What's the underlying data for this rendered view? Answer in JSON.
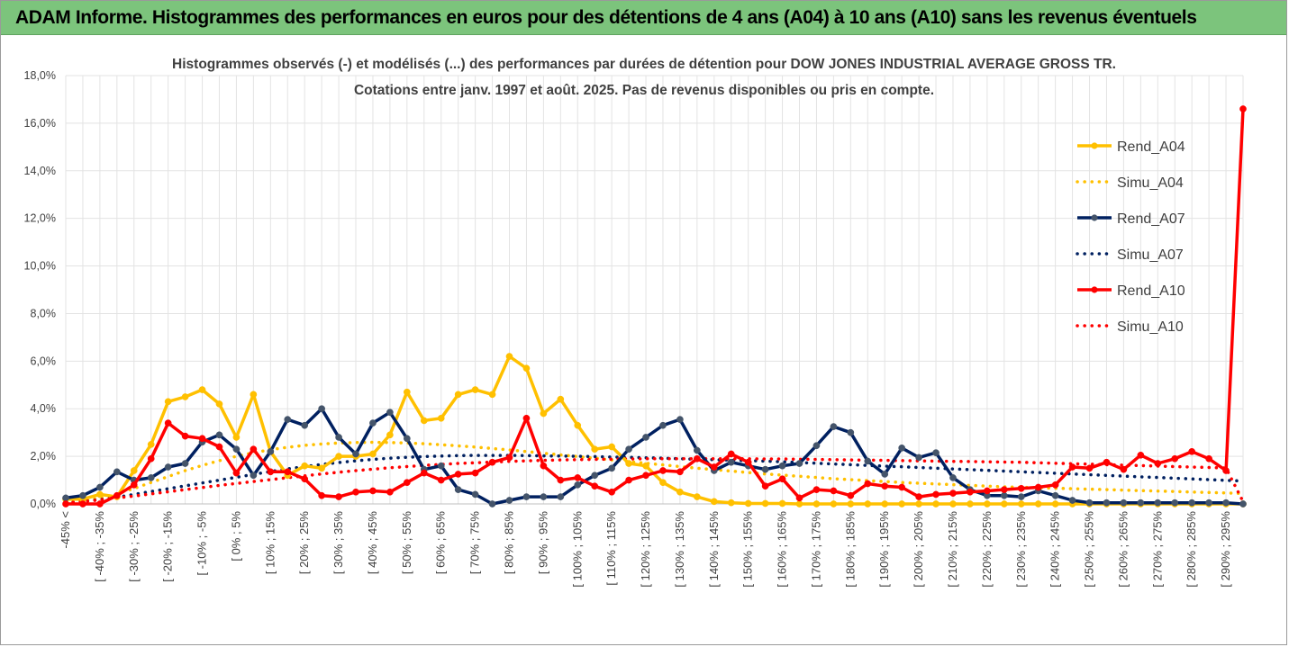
{
  "banner": {
    "title": "ADAM Informe. Histogrammes des performances en euros pour des détentions de 4 ans (A04) à 10 ans (A10) sans les revenus éventuels"
  },
  "chart_data": {
    "type": "line",
    "title_line1": "Histogrammes observés (-) et modélisés (...) des performances par durées de détention pour DOW JONES INDUSTRIAL AVERAGE GROSS TR.",
    "title_line2": "Cotations entre janv. 1997 et août. 2025. Pas de revenus disponibles ou pris en compte.",
    "ylim": [
      0,
      18
    ],
    "y_ticks": [
      "0,0%",
      "2,0%",
      "4,0%",
      "6,0%",
      "8,0%",
      "10,0%",
      "12,0%",
      "14,0%",
      "16,0%",
      "18,0%"
    ],
    "x_tick_labels": [
      "-45% <",
      "[ -40% ; -35%",
      "[ -30% ; -25%",
      "[ -20% ; -15%",
      "[ -10% ; -5%",
      "[ 0% ; 5%",
      "[ 10% ; 15%",
      "[ 20% ; 25%",
      "[ 30% ; 35%",
      "[ 40% ; 45%",
      "[ 50% ; 55%",
      "[ 60% ; 65%",
      "[ 70% ; 75%",
      "[ 80% ; 85%",
      "[ 90% ; 95%",
      "[ 100% ; 105%",
      "[ 110% ; 115%",
      "[ 120% ; 125%",
      "[ 130% ; 135%",
      "[ 140% ; 145%",
      "[ 150% ; 155%",
      "[ 160% ; 165%",
      "[ 170% ; 175%",
      "[ 180% ; 185%",
      "[ 190% ; 195%",
      "[ 200% ; 205%",
      "[ 210% ; 215%",
      "[ 220% ; 225%",
      "[ 230% ; 235%",
      "[ 240% ; 245%",
      "[ 250% ; 255%",
      "[ 260% ; 265%",
      "[ 270% ; 275%",
      "[ 280% ; 285%",
      "[ 290% ; 295%"
    ],
    "n_bins": 70,
    "legend_position": "right",
    "grid": true,
    "series": [
      {
        "name": "Rend_A04",
        "style": "solid",
        "color": "#FFC000",
        "values": [
          0.2,
          0.2,
          0.4,
          0.3,
          1.4,
          2.5,
          4.3,
          4.5,
          4.8,
          4.2,
          2.8,
          4.6,
          2.2,
          1.2,
          1.6,
          1.5,
          2.0,
          2.0,
          2.1,
          2.9,
          4.7,
          3.5,
          3.6,
          4.6,
          4.8,
          4.6,
          6.2,
          5.7,
          3.8,
          4.4,
          3.3,
          2.3,
          2.4,
          1.7,
          1.6,
          0.9,
          0.5,
          0.3,
          0.1,
          0.05,
          0.02,
          0.02,
          0.02,
          0.0,
          0.0,
          0.0,
          0.0,
          0.0,
          0.0,
          0.0,
          0.0,
          0.0,
          0.0,
          0.0,
          0.0,
          0.0,
          0.0,
          0.0,
          0.0,
          0.0,
          0.0,
          0.0,
          0.0,
          0.0,
          0.0,
          0.0,
          0.0,
          0.0,
          0.0,
          0.0
        ]
      },
      {
        "name": "Simu_A04",
        "style": "dotted",
        "color": "#FFC000",
        "values": [
          0.05,
          0.12,
          0.25,
          0.42,
          0.65,
          0.9,
          1.15,
          1.4,
          1.62,
          1.82,
          2.0,
          2.15,
          2.28,
          2.38,
          2.46,
          2.52,
          2.56,
          2.58,
          2.59,
          2.58,
          2.56,
          2.53,
          2.49,
          2.44,
          2.39,
          2.33,
          2.27,
          2.2,
          2.13,
          2.06,
          1.99,
          1.92,
          1.85,
          1.78,
          1.71,
          1.64,
          1.57,
          1.5,
          1.44,
          1.38,
          1.32,
          1.26,
          1.21,
          1.16,
          1.11,
          1.06,
          1.02,
          0.98,
          0.94,
          0.9,
          0.87,
          0.84,
          0.81,
          0.78,
          0.75,
          0.72,
          0.7,
          0.68,
          0.66,
          0.64,
          0.62,
          0.6,
          0.58,
          0.56,
          0.54,
          0.52,
          0.5,
          0.48,
          0.46,
          0.44
        ]
      },
      {
        "name": "Rend_A07",
        "style": "solid",
        "color": "#002060",
        "values": [
          0.25,
          0.35,
          0.7,
          1.35,
          1.0,
          1.1,
          1.55,
          1.7,
          2.6,
          2.9,
          2.3,
          1.2,
          2.2,
          3.55,
          3.3,
          4.0,
          2.8,
          2.1,
          3.4,
          3.85,
          2.75,
          1.45,
          1.6,
          0.6,
          0.4,
          0.0,
          0.15,
          0.3,
          0.3,
          0.3,
          0.8,
          1.2,
          1.5,
          2.3,
          2.8,
          3.3,
          3.55,
          2.25,
          1.4,
          1.75,
          1.6,
          1.45,
          1.6,
          1.7,
          2.45,
          3.25,
          3.0,
          1.8,
          1.25,
          2.35,
          1.95,
          2.15,
          1.1,
          0.6,
          0.35,
          0.35,
          0.3,
          0.55,
          0.35,
          0.15,
          0.05,
          0.05,
          0.05,
          0.05,
          0.05,
          0.05,
          0.05,
          0.05,
          0.05,
          0.0
        ]
      },
      {
        "name": "Simu_A07",
        "style": "dotted",
        "color": "#002060",
        "values": [
          0.05,
          0.1,
          0.18,
          0.28,
          0.4,
          0.52,
          0.64,
          0.76,
          0.88,
          1.0,
          1.12,
          1.24,
          1.36,
          1.47,
          1.57,
          1.66,
          1.74,
          1.81,
          1.87,
          1.92,
          1.96,
          1.99,
          2.01,
          2.03,
          2.04,
          2.04,
          2.04,
          2.03,
          2.02,
          2.01,
          2.0,
          1.99,
          1.97,
          1.96,
          1.94,
          1.92,
          1.9,
          1.88,
          1.86,
          1.84,
          1.82,
          1.8,
          1.77,
          1.74,
          1.71,
          1.68,
          1.65,
          1.62,
          1.59,
          1.56,
          1.53,
          1.5,
          1.47,
          1.44,
          1.41,
          1.38,
          1.35,
          1.32,
          1.29,
          1.26,
          1.23,
          1.2,
          1.17,
          1.14,
          1.11,
          1.08,
          1.05,
          1.02,
          0.99,
          0.96
        ]
      },
      {
        "name": "Rend_A10",
        "style": "solid",
        "color": "#FF0000",
        "values": [
          0.0,
          0.0,
          0.0,
          0.35,
          0.8,
          1.9,
          3.4,
          2.85,
          2.75,
          2.4,
          1.3,
          2.3,
          1.35,
          1.35,
          1.05,
          0.35,
          0.3,
          0.5,
          0.55,
          0.5,
          0.9,
          1.3,
          1.0,
          1.25,
          1.3,
          1.75,
          1.95,
          3.6,
          1.6,
          1.0,
          1.1,
          0.75,
          0.5,
          1.0,
          1.2,
          1.4,
          1.35,
          1.9,
          1.55,
          2.1,
          1.75,
          0.75,
          1.05,
          0.25,
          0.6,
          0.55,
          0.35,
          0.85,
          0.75,
          0.7,
          0.3,
          0.4,
          0.45,
          0.5,
          0.55,
          0.6,
          0.65,
          0.7,
          0.8,
          1.55,
          1.5,
          1.75,
          1.45,
          2.05,
          1.7,
          1.9,
          2.2,
          1.9,
          1.4,
          16.6
        ]
      },
      {
        "name": "Simu_A10",
        "style": "dotted",
        "color": "#FF0000",
        "values": [
          0.05,
          0.1,
          0.17,
          0.25,
          0.33,
          0.42,
          0.51,
          0.6,
          0.69,
          0.78,
          0.86,
          0.94,
          1.02,
          1.1,
          1.18,
          1.26,
          1.33,
          1.4,
          1.46,
          1.52,
          1.57,
          1.62,
          1.66,
          1.7,
          1.73,
          1.76,
          1.79,
          1.81,
          1.83,
          1.85,
          1.86,
          1.87,
          1.88,
          1.89,
          1.9,
          1.9,
          1.9,
          1.9,
          1.9,
          1.9,
          1.9,
          1.89,
          1.89,
          1.88,
          1.87,
          1.86,
          1.85,
          1.84,
          1.83,
          1.82,
          1.81,
          1.8,
          1.79,
          1.78,
          1.77,
          1.76,
          1.75,
          1.73,
          1.71,
          1.69,
          1.67,
          1.65,
          1.63,
          1.61,
          1.59,
          1.57,
          1.55,
          1.53,
          1.51,
          0.1
        ]
      }
    ]
  }
}
